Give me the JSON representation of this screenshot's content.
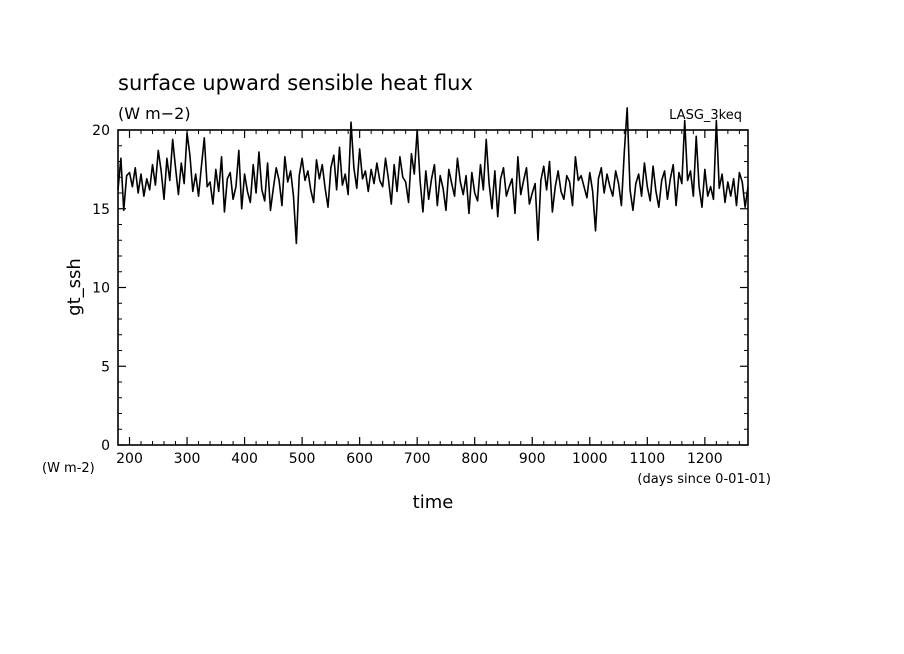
{
  "chart_data": {
    "type": "line",
    "title": "surface upward sensible heat flux",
    "title_units": "(W m−2)",
    "run_label": "LASG_3keq",
    "xlabel": "time",
    "xunits": "(days since 0-01-01)",
    "ylabel": "gt_ssh",
    "yunits": "(W m-2)",
    "xlim": [
      180,
      1275
    ],
    "ylim": [
      0,
      20
    ],
    "x_ticks": [
      200,
      300,
      400,
      500,
      600,
      700,
      800,
      900,
      1000,
      1100,
      1200
    ],
    "y_ticks": [
      0,
      5,
      10,
      15,
      20
    ],
    "grid": false,
    "line_color": "#000000",
    "series": [
      {
        "x": [
          180,
          185,
          190,
          195,
          200,
          205,
          210,
          215,
          220,
          225,
          230,
          235,
          240,
          245,
          250,
          255,
          260,
          265,
          270,
          275,
          280,
          285,
          290,
          295,
          300,
          305,
          310,
          315,
          320,
          325,
          330,
          335,
          340,
          345,
          350,
          355,
          360,
          365,
          370,
          375,
          380,
          385,
          390,
          395,
          400,
          405,
          410,
          415,
          420,
          425,
          430,
          435,
          440,
          445,
          450,
          455,
          460,
          465,
          470,
          475,
          480,
          485,
          490,
          495,
          500,
          505,
          510,
          515,
          520,
          525,
          530,
          535,
          540,
          545,
          550,
          555,
          560,
          565,
          570,
          575,
          580,
          585,
          590,
          595,
          600,
          605,
          610,
          615,
          620,
          625,
          630,
          635,
          640,
          645,
          650,
          655,
          660,
          665,
          670,
          675,
          680,
          685,
          690,
          695,
          700,
          705,
          710,
          715,
          720,
          725,
          730,
          735,
          740,
          745,
          750,
          755,
          760,
          765,
          770,
          775,
          780,
          785,
          790,
          795,
          800,
          805,
          810,
          815,
          820,
          825,
          830,
          835,
          840,
          845,
          850,
          855,
          860,
          865,
          870,
          875,
          880,
          885,
          890,
          895,
          900,
          905,
          910,
          915,
          920,
          925,
          930,
          935,
          940,
          945,
          950,
          955,
          960,
          965,
          970,
          975,
          980,
          985,
          990,
          995,
          1000,
          1005,
          1010,
          1015,
          1020,
          1025,
          1030,
          1035,
          1040,
          1045,
          1050,
          1055,
          1060,
          1065,
          1070,
          1075,
          1080,
          1085,
          1090,
          1095,
          1100,
          1105,
          1110,
          1115,
          1120,
          1125,
          1130,
          1135,
          1140,
          1145,
          1150,
          1155,
          1160,
          1165,
          1170,
          1175,
          1180,
          1185,
          1190,
          1195,
          1200,
          1205,
          1210,
          1215,
          1220,
          1225,
          1230,
          1235,
          1240,
          1245,
          1250,
          1255,
          1260,
          1265,
          1270,
          1275
        ],
        "values": [
          16.2,
          18.2,
          14.9,
          17.1,
          17.3,
          16.4,
          17.6,
          16.0,
          17.2,
          15.8,
          16.9,
          16.2,
          17.8,
          16.5,
          18.7,
          17.4,
          15.6,
          18.2,
          16.8,
          19.4,
          17.6,
          15.9,
          17.9,
          16.6,
          19.8,
          18.4,
          16.1,
          17.2,
          15.8,
          17.7,
          19.5,
          16.4,
          16.7,
          15.3,
          17.5,
          16.1,
          18.3,
          14.8,
          16.9,
          17.3,
          15.6,
          16.4,
          18.7,
          15.0,
          17.2,
          16.1,
          15.4,
          17.8,
          16.0,
          18.6,
          16.2,
          15.5,
          17.9,
          14.9,
          16.3,
          17.6,
          16.8,
          15.2,
          18.3,
          16.7,
          17.4,
          15.8,
          12.8,
          17.1,
          18.2,
          16.8,
          17.4,
          16.2,
          15.4,
          18.1,
          16.9,
          17.8,
          16.3,
          15.1,
          17.6,
          18.4,
          16.2,
          18.9,
          16.5,
          17.2,
          15.9,
          20.5,
          17.6,
          16.3,
          18.8,
          16.9,
          17.4,
          16.1,
          17.5,
          16.6,
          17.9,
          16.8,
          16.4,
          18.2,
          16.9,
          15.3,
          17.8,
          16.1,
          18.3,
          17.0,
          16.7,
          15.4,
          18.5,
          17.2,
          20.0,
          16.8,
          14.8,
          17.4,
          15.6,
          16.9,
          17.8,
          15.2,
          17.1,
          16.3,
          14.9,
          17.5,
          16.6,
          15.8,
          18.2,
          16.7,
          15.9,
          17.1,
          14.7,
          17.3,
          16.0,
          15.5,
          17.8,
          16.2,
          19.4,
          16.6,
          15.0,
          17.4,
          14.5,
          16.9,
          17.6,
          15.8,
          16.4,
          16.9,
          14.7,
          18.3,
          15.9,
          16.8,
          17.6,
          15.3,
          16.0,
          16.6,
          13.0,
          16.8,
          17.7,
          16.2,
          18.0,
          14.8,
          16.4,
          17.4,
          16.1,
          15.6,
          17.1,
          16.7,
          15.2,
          18.3,
          16.8,
          17.1,
          16.4,
          15.7,
          17.3,
          16.1,
          13.6,
          16.9,
          17.6,
          16.0,
          17.2,
          16.4,
          15.8,
          17.4,
          16.6,
          15.2,
          18.6,
          21.4,
          16.2,
          14.9,
          16.6,
          17.2,
          15.8,
          17.9,
          16.4,
          15.5,
          17.7,
          16.1,
          15.1,
          16.8,
          17.4,
          15.6,
          16.9,
          17.8,
          15.2,
          17.3,
          16.6,
          20.6,
          16.8,
          17.4,
          15.8,
          19.6,
          16.4,
          15.1,
          17.5,
          15.8,
          16.4,
          15.6,
          20.6,
          16.3,
          17.2,
          15.4,
          16.7,
          15.8,
          16.9,
          15.2,
          17.3,
          16.7,
          15.1,
          16.4
        ]
      }
    ]
  }
}
